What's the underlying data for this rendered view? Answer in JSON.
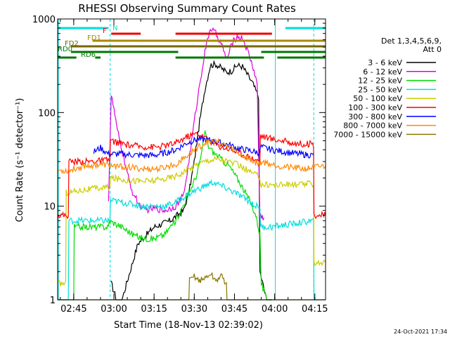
{
  "chart_data": {
    "type": "line",
    "title": "RHESSI Observing Summary Count Rates",
    "xlabel": "Start Time (18-Nov-13 02:39:02)",
    "ylabel": "Count Rate (s⁻¹ detector⁻¹)",
    "x_unit": "minutes after 02:39:02",
    "xlim": [
      0,
      100
    ],
    "ylim": [
      1,
      1000
    ],
    "yscale": "log",
    "x_ticks": [
      {
        "t": 6,
        "label": "02:45"
      },
      {
        "t": 21,
        "label": "03:00"
      },
      {
        "t": 36,
        "label": "03:15"
      },
      {
        "t": 51,
        "label": "03:30"
      },
      {
        "t": 66,
        "label": "03:45"
      },
      {
        "t": 81,
        "label": "04:00"
      },
      {
        "t": 96,
        "label": "04:15"
      }
    ],
    "y_ticks": [
      {
        "v": 1,
        "label": "1"
      },
      {
        "v": 10,
        "label": "10"
      },
      {
        "v": 100,
        "label": "100"
      },
      {
        "v": 1000,
        "label": "1000"
      }
    ],
    "legend_header": [
      "Det 1,3,4,5,6,9,",
      "Att 0"
    ],
    "legend_placement": "right",
    "series": [
      {
        "name": "3 - 6 keV",
        "color": "#000000",
        "points": [
          [
            20,
            1.5
          ],
          [
            22,
            1.0
          ],
          [
            24,
            1.0
          ],
          [
            30,
            4.0
          ],
          [
            36,
            6.0
          ],
          [
            42,
            7.0
          ],
          [
            47,
            9.0
          ],
          [
            49,
            14.0
          ],
          [
            51,
            30.0
          ],
          [
            53,
            80.0
          ],
          [
            55,
            180.0
          ],
          [
            57,
            320.0
          ],
          [
            59,
            330.0
          ],
          [
            61,
            300.0
          ],
          [
            63,
            270.0
          ],
          [
            65,
            280.0
          ],
          [
            67,
            320.0
          ],
          [
            69,
            310.0
          ],
          [
            71,
            250.0
          ],
          [
            73,
            200.0
          ],
          [
            74,
            170.0
          ],
          [
            75,
            150.0
          ],
          [
            75.5,
            2.0
          ],
          [
            78,
            1.0
          ],
          [
            80,
            1.0
          ]
        ]
      },
      {
        "name": "6 - 12 keV",
        "color": "#dd00dd",
        "points": [
          [
            19,
            12.0
          ],
          [
            20,
            150.0
          ],
          [
            21,
            110.0
          ],
          [
            22,
            70.0
          ],
          [
            24,
            40.0
          ],
          [
            26,
            22.0
          ],
          [
            28,
            14.0
          ],
          [
            30,
            11.0
          ],
          [
            32,
            9.0
          ],
          [
            36,
            9.5
          ],
          [
            40,
            9.0
          ],
          [
            44,
            10.0
          ],
          [
            47,
            13.0
          ],
          [
            49,
            30.0
          ],
          [
            51,
            80.0
          ],
          [
            53,
            200.0
          ],
          [
            55,
            450.0
          ],
          [
            57,
            800.0
          ],
          [
            59,
            700.0
          ],
          [
            61,
            550.0
          ],
          [
            62,
            450.0
          ],
          [
            63,
            380.0
          ],
          [
            64,
            420.0
          ],
          [
            65,
            550.0
          ],
          [
            67,
            650.0
          ],
          [
            69,
            620.0
          ],
          [
            71,
            450.0
          ],
          [
            73,
            300.0
          ],
          [
            74.5,
            200.0
          ],
          [
            75.5,
            8.0
          ],
          [
            77,
            7.5
          ]
        ]
      },
      {
        "name": "12 - 25 keV",
        "color": "#00dd00",
        "points": [
          [
            0,
            1.0
          ],
          [
            6,
            1.0
          ],
          [
            6.2,
            6.0
          ],
          [
            12,
            6.0
          ],
          [
            19,
            6.0
          ],
          [
            19.2,
            7.0
          ],
          [
            24,
            6.0
          ],
          [
            28,
            5.0
          ],
          [
            32,
            4.5
          ],
          [
            36,
            4.5
          ],
          [
            40,
            5.0
          ],
          [
            42,
            6.0
          ],
          [
            44,
            7.0
          ],
          [
            46,
            9.0
          ],
          [
            48,
            12.0
          ],
          [
            50,
            16.0
          ],
          [
            52,
            22.0
          ],
          [
            54,
            40.0
          ],
          [
            55,
            65.0
          ],
          [
            56,
            45.0
          ],
          [
            58,
            38.0
          ],
          [
            60,
            34.0
          ],
          [
            62,
            30.0
          ],
          [
            64,
            27.0
          ],
          [
            66,
            22.0
          ],
          [
            68,
            18.0
          ],
          [
            70,
            14.0
          ],
          [
            72,
            11.0
          ],
          [
            74,
            8.0
          ],
          [
            75.5,
            5.0
          ],
          [
            76,
            1.5
          ],
          [
            78,
            1.0
          ],
          [
            80,
            1.0
          ]
        ]
      },
      {
        "name": "25 - 50 keV",
        "color": "#00dddd",
        "points": [
          [
            0,
            1.0
          ],
          [
            4,
            1.0
          ],
          [
            4.2,
            7.0
          ],
          [
            12,
            7.0
          ],
          [
            19.5,
            7.0
          ],
          [
            19.7,
            11.5
          ],
          [
            24,
            11.0
          ],
          [
            28,
            10.5
          ],
          [
            32,
            10.0
          ],
          [
            36,
            10.0
          ],
          [
            40,
            10.0
          ],
          [
            44,
            11.0
          ],
          [
            48,
            13.0
          ],
          [
            52,
            15.0
          ],
          [
            56,
            17.0
          ],
          [
            58,
            18.0
          ],
          [
            60,
            17.0
          ],
          [
            62,
            16.0
          ],
          [
            64,
            15.0
          ],
          [
            66,
            14.0
          ],
          [
            68,
            13.0
          ],
          [
            70,
            12.0
          ],
          [
            72,
            11.0
          ],
          [
            74,
            10.0
          ],
          [
            75.5,
            10.0
          ],
          [
            75.7,
            6.0
          ],
          [
            80,
            6.0
          ],
          [
            88,
            6.5
          ],
          [
            95.5,
            7.0
          ],
          [
            95.7,
            1.0
          ],
          [
            100,
            1.0
          ]
        ]
      },
      {
        "name": "50 - 100 keV",
        "color": "#cccc00",
        "points": [
          [
            0,
            1.5
          ],
          [
            3,
            1.5
          ],
          [
            3.2,
            14.0
          ],
          [
            10,
            15.0
          ],
          [
            19.5,
            16.0
          ],
          [
            19.7,
            20.0
          ],
          [
            26,
            19.0
          ],
          [
            32,
            18.5
          ],
          [
            38,
            19.0
          ],
          [
            44,
            21.0
          ],
          [
            48,
            24.0
          ],
          [
            52,
            28.0
          ],
          [
            56,
            31.0
          ],
          [
            60,
            32.0
          ],
          [
            64,
            30.0
          ],
          [
            68,
            27.0
          ],
          [
            72,
            23.0
          ],
          [
            75.5,
            20.5
          ],
          [
            75.7,
            17.0
          ],
          [
            82,
            17.0
          ],
          [
            90,
            17.0
          ],
          [
            95.5,
            17.5
          ],
          [
            95.7,
            2.5
          ],
          [
            100,
            2.5
          ]
        ]
      },
      {
        "name": "100 - 300 keV",
        "color": "#ff0000",
        "points": [
          [
            0,
            8.0
          ],
          [
            4,
            8.0
          ],
          [
            4.2,
            30.0
          ],
          [
            12,
            30.0
          ],
          [
            19.5,
            31.0
          ],
          [
            19.7,
            50.0
          ],
          [
            26,
            45.0
          ],
          [
            32,
            43.0
          ],
          [
            38,
            43.0
          ],
          [
            44,
            47.0
          ],
          [
            48,
            55.0
          ],
          [
            52,
            60.0
          ],
          [
            56,
            52.0
          ],
          [
            60,
            44.0
          ],
          [
            64,
            41.0
          ],
          [
            68,
            37.0
          ],
          [
            72,
            33.0
          ],
          [
            75.5,
            30.0
          ],
          [
            75.7,
            57.0
          ],
          [
            80,
            52.0
          ],
          [
            84,
            50.0
          ],
          [
            88,
            47.0
          ],
          [
            95.5,
            46.0
          ],
          [
            95.7,
            8.0
          ],
          [
            100,
            8.0
          ]
        ]
      },
      {
        "name": "300 - 800 keV",
        "color": "#0000ff",
        "points": [
          [
            13.5,
            38.0
          ],
          [
            16,
            42.0
          ],
          [
            19,
            36.0
          ],
          [
            24,
            36.0
          ],
          [
            30,
            35.0
          ],
          [
            36,
            35.0
          ],
          [
            40,
            37.0
          ],
          [
            44,
            40.0
          ],
          [
            48,
            47.0
          ],
          [
            52,
            52.0
          ],
          [
            56,
            51.0
          ],
          [
            60,
            48.0
          ],
          [
            64,
            45.0
          ],
          [
            68,
            41.0
          ],
          [
            72,
            39.0
          ],
          [
            75.5,
            37.0
          ],
          [
            75.7,
            43.0
          ],
          [
            80,
            40.0
          ],
          [
            85,
            38.0
          ],
          [
            90,
            36.0
          ],
          [
            95.5,
            35.0
          ]
        ]
      },
      {
        "name": "800 - 7000 keV",
        "color": "#ff8800",
        "points": [
          [
            0,
            24.0
          ],
          [
            4,
            24.0
          ],
          [
            10,
            27.0
          ],
          [
            16,
            28.0
          ],
          [
            20,
            27.0
          ],
          [
            26,
            26.0
          ],
          [
            32,
            25.0
          ],
          [
            38,
            25.0
          ],
          [
            44,
            28.0
          ],
          [
            48,
            34.0
          ],
          [
            52,
            42.0
          ],
          [
            56,
            49.0
          ],
          [
            60,
            48.0
          ],
          [
            64,
            43.0
          ],
          [
            68,
            36.0
          ],
          [
            72,
            31.0
          ],
          [
            75.5,
            28.0
          ],
          [
            76,
            30.0
          ],
          [
            80,
            28.0
          ],
          [
            86,
            26.0
          ],
          [
            92,
            25.0
          ],
          [
            95.5,
            26.0
          ],
          [
            100,
            27.0
          ]
        ]
      },
      {
        "name": "7000 - 15000 keV",
        "color": "#887700",
        "points": [
          [
            0,
            1.0
          ],
          [
            49,
            1.0
          ],
          [
            49.2,
            1.6
          ],
          [
            51,
            1.8
          ],
          [
            53,
            1.6
          ],
          [
            55,
            1.7
          ],
          [
            57,
            1.9
          ],
          [
            59,
            1.6
          ],
          [
            61,
            1.8
          ],
          [
            63,
            1.5
          ],
          [
            63.2,
            1.0
          ],
          [
            100,
            1.0
          ]
        ]
      }
    ],
    "state_flags": [
      {
        "label": "N",
        "color": "#00dddd",
        "segments": [
          [
            0,
            19
          ],
          [
            85,
            100
          ]
        ]
      },
      {
        "label": "F",
        "color": "#ee0000",
        "segments": [
          [
            20,
            31
          ],
          [
            44,
            80
          ]
        ]
      },
      {
        "label": "FD1",
        "color": "#aa8800",
        "segments": [
          [
            13,
            100
          ]
        ]
      },
      {
        "label": "FD2",
        "color": "#776600",
        "segments": [
          [
            5,
            100
          ]
        ]
      },
      {
        "label": "RD0",
        "color": "#007700",
        "segments": [
          [
            5,
            45
          ],
          [
            76,
            100
          ]
        ]
      },
      {
        "label": "RD6",
        "color": "#007700",
        "segments": [
          [
            0,
            7
          ],
          [
            14,
            16
          ],
          [
            44,
            77
          ],
          [
            82,
            100
          ]
        ]
      }
    ],
    "saa_marks": [
      19.6,
      95.6
    ],
    "night_marks": [
      0,
      81
    ],
    "grid": false
  },
  "footer": {
    "date": "24-Oct-2021 17:34"
  }
}
